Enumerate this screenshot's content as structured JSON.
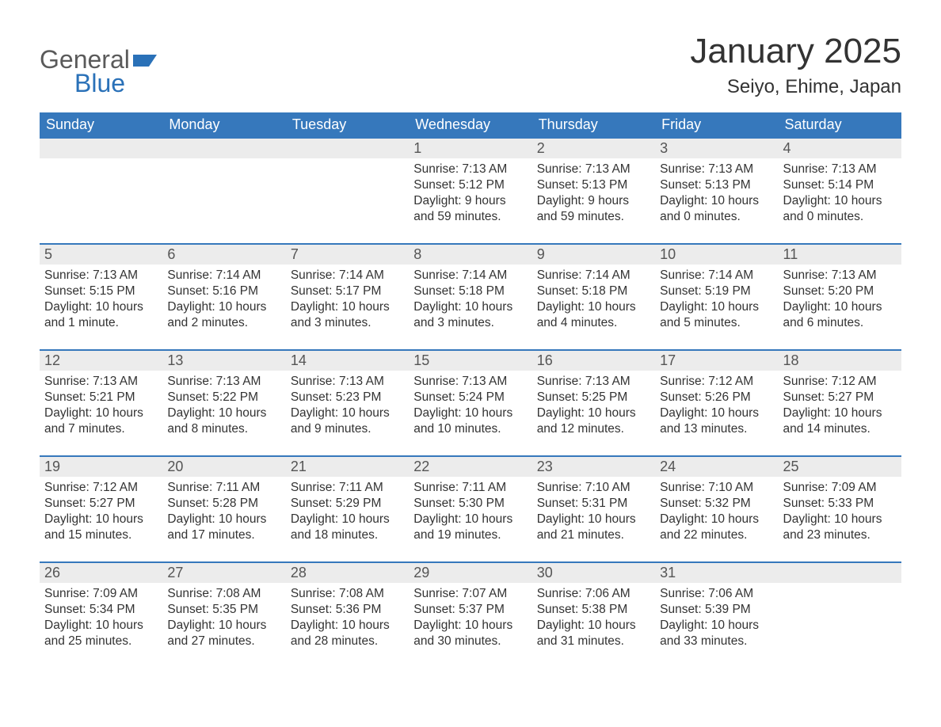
{
  "logo": {
    "word1": "General",
    "word2": "Blue",
    "flag_color": "#2a71b8"
  },
  "title": "January 2025",
  "location": "Seiyo, Ehime, Japan",
  "colors": {
    "header_bg": "#3678bc",
    "header_text": "#ffffff",
    "row_border": "#3678bc",
    "daynum_bg": "#ececec",
    "body_text": "#333333",
    "logo_gray": "#5a5a5a",
    "logo_blue": "#2a71b8",
    "page_bg": "#ffffff"
  },
  "fonts": {
    "title_size_pt": 33,
    "location_size_pt": 18,
    "header_size_pt": 14,
    "daynum_size_pt": 14,
    "body_size_pt": 12
  },
  "calendar": {
    "type": "table",
    "month": 1,
    "year": 2025,
    "first_weekday": "Sunday",
    "day_headers": [
      "Sunday",
      "Monday",
      "Tuesday",
      "Wednesday",
      "Thursday",
      "Friday",
      "Saturday"
    ],
    "leading_blanks": 3,
    "trailing_blanks": 1,
    "days": [
      {
        "n": 1,
        "sunrise": "7:13 AM",
        "sunset": "5:12 PM",
        "daylight": "9 hours and 59 minutes."
      },
      {
        "n": 2,
        "sunrise": "7:13 AM",
        "sunset": "5:13 PM",
        "daylight": "9 hours and 59 minutes."
      },
      {
        "n": 3,
        "sunrise": "7:13 AM",
        "sunset": "5:13 PM",
        "daylight": "10 hours and 0 minutes."
      },
      {
        "n": 4,
        "sunrise": "7:13 AM",
        "sunset": "5:14 PM",
        "daylight": "10 hours and 0 minutes."
      },
      {
        "n": 5,
        "sunrise": "7:13 AM",
        "sunset": "5:15 PM",
        "daylight": "10 hours and 1 minute."
      },
      {
        "n": 6,
        "sunrise": "7:14 AM",
        "sunset": "5:16 PM",
        "daylight": "10 hours and 2 minutes."
      },
      {
        "n": 7,
        "sunrise": "7:14 AM",
        "sunset": "5:17 PM",
        "daylight": "10 hours and 3 minutes."
      },
      {
        "n": 8,
        "sunrise": "7:14 AM",
        "sunset": "5:18 PM",
        "daylight": "10 hours and 3 minutes."
      },
      {
        "n": 9,
        "sunrise": "7:14 AM",
        "sunset": "5:18 PM",
        "daylight": "10 hours and 4 minutes."
      },
      {
        "n": 10,
        "sunrise": "7:14 AM",
        "sunset": "5:19 PM",
        "daylight": "10 hours and 5 minutes."
      },
      {
        "n": 11,
        "sunrise": "7:13 AM",
        "sunset": "5:20 PM",
        "daylight": "10 hours and 6 minutes."
      },
      {
        "n": 12,
        "sunrise": "7:13 AM",
        "sunset": "5:21 PM",
        "daylight": "10 hours and 7 minutes."
      },
      {
        "n": 13,
        "sunrise": "7:13 AM",
        "sunset": "5:22 PM",
        "daylight": "10 hours and 8 minutes."
      },
      {
        "n": 14,
        "sunrise": "7:13 AM",
        "sunset": "5:23 PM",
        "daylight": "10 hours and 9 minutes."
      },
      {
        "n": 15,
        "sunrise": "7:13 AM",
        "sunset": "5:24 PM",
        "daylight": "10 hours and 10 minutes."
      },
      {
        "n": 16,
        "sunrise": "7:13 AM",
        "sunset": "5:25 PM",
        "daylight": "10 hours and 12 minutes."
      },
      {
        "n": 17,
        "sunrise": "7:12 AM",
        "sunset": "5:26 PM",
        "daylight": "10 hours and 13 minutes."
      },
      {
        "n": 18,
        "sunrise": "7:12 AM",
        "sunset": "5:27 PM",
        "daylight": "10 hours and 14 minutes."
      },
      {
        "n": 19,
        "sunrise": "7:12 AM",
        "sunset": "5:27 PM",
        "daylight": "10 hours and 15 minutes."
      },
      {
        "n": 20,
        "sunrise": "7:11 AM",
        "sunset": "5:28 PM",
        "daylight": "10 hours and 17 minutes."
      },
      {
        "n": 21,
        "sunrise": "7:11 AM",
        "sunset": "5:29 PM",
        "daylight": "10 hours and 18 minutes."
      },
      {
        "n": 22,
        "sunrise": "7:11 AM",
        "sunset": "5:30 PM",
        "daylight": "10 hours and 19 minutes."
      },
      {
        "n": 23,
        "sunrise": "7:10 AM",
        "sunset": "5:31 PM",
        "daylight": "10 hours and 21 minutes."
      },
      {
        "n": 24,
        "sunrise": "7:10 AM",
        "sunset": "5:32 PM",
        "daylight": "10 hours and 22 minutes."
      },
      {
        "n": 25,
        "sunrise": "7:09 AM",
        "sunset": "5:33 PM",
        "daylight": "10 hours and 23 minutes."
      },
      {
        "n": 26,
        "sunrise": "7:09 AM",
        "sunset": "5:34 PM",
        "daylight": "10 hours and 25 minutes."
      },
      {
        "n": 27,
        "sunrise": "7:08 AM",
        "sunset": "5:35 PM",
        "daylight": "10 hours and 27 minutes."
      },
      {
        "n": 28,
        "sunrise": "7:08 AM",
        "sunset": "5:36 PM",
        "daylight": "10 hours and 28 minutes."
      },
      {
        "n": 29,
        "sunrise": "7:07 AM",
        "sunset": "5:37 PM",
        "daylight": "10 hours and 30 minutes."
      },
      {
        "n": 30,
        "sunrise": "7:06 AM",
        "sunset": "5:38 PM",
        "daylight": "10 hours and 31 minutes."
      },
      {
        "n": 31,
        "sunrise": "7:06 AM",
        "sunset": "5:39 PM",
        "daylight": "10 hours and 33 minutes."
      }
    ],
    "labels": {
      "sunrise": "Sunrise: ",
      "sunset": "Sunset: ",
      "daylight": "Daylight: "
    }
  }
}
